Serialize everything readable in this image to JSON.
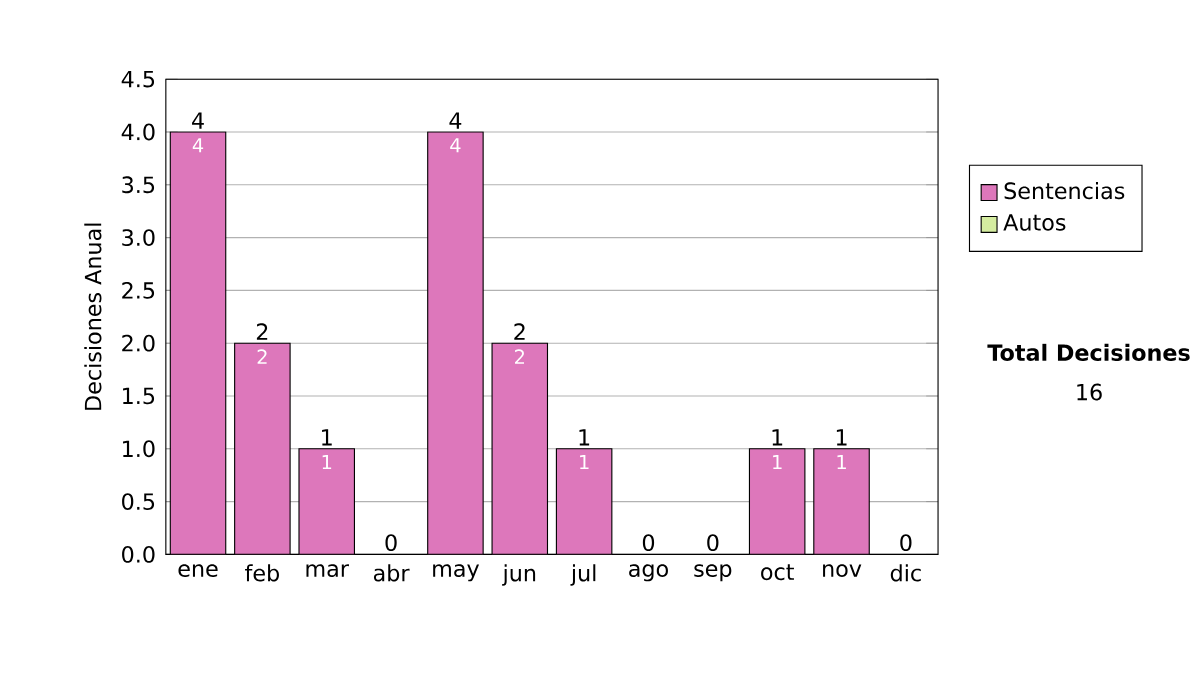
{
  "chart_data": {
    "type": "bar",
    "stacked": true,
    "ylabel": "Decisiones Anual",
    "categories": [
      "ene",
      "feb",
      "mar",
      "abr",
      "may",
      "jun",
      "jul",
      "ago",
      "sep",
      "oct",
      "nov",
      "dic"
    ],
    "series": [
      {
        "name": "Sentencias",
        "color": "#dd77bb",
        "values": [
          4,
          2,
          1,
          0,
          4,
          2,
          1,
          0,
          0,
          1,
          1,
          0
        ],
        "value_labels": [
          "4",
          "2",
          "1",
          null,
          "4",
          "2",
          "1",
          null,
          null,
          "1",
          "1",
          null
        ]
      },
      {
        "name": "Autos",
        "color": "#d4eca0",
        "values": [
          0,
          0,
          0,
          0,
          0,
          0,
          0,
          0,
          0,
          0,
          0,
          0
        ]
      }
    ],
    "totals": [
      "4",
      "2",
      "1",
      "0",
      "4",
      "2",
      "1",
      "0",
      "0",
      "1",
      "1",
      "0"
    ],
    "ylim": [
      0,
      4.5
    ],
    "yticks": [
      {
        "value": 0,
        "label": "0.0"
      },
      {
        "value": 0.5,
        "label": "0.5"
      },
      {
        "value": 1,
        "label": "1.0"
      },
      {
        "value": 1.5,
        "label": "1.5"
      },
      {
        "value": 2,
        "label": "2.0"
      },
      {
        "value": 2.5,
        "label": "2.5"
      },
      {
        "value": 3,
        "label": "3.0"
      },
      {
        "value": 3.5,
        "label": "3.5"
      },
      {
        "value": 4,
        "label": "4.0"
      },
      {
        "value": 4.5,
        "label": "4.5"
      }
    ],
    "grid": "y",
    "legend": "right",
    "annotations": [
      "Total Decisiones",
      "16"
    ]
  }
}
